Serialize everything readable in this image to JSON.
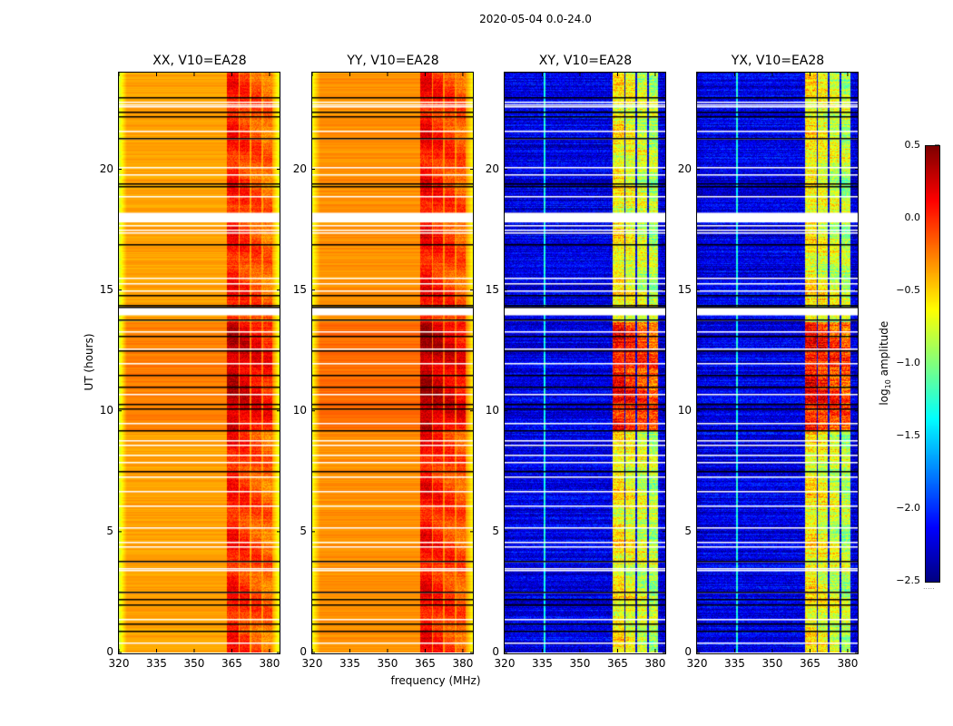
{
  "figure": {
    "suptitle": "2020-05-04 0.0-24.0",
    "xlabel": "frequency (MHz)",
    "ylabel": "UT (hours)",
    "colorbar_label_prefix": "log",
    "colorbar_label_sub": "10",
    "colorbar_label_suffix": " amplitude"
  },
  "chart_data": {
    "type": "heatmap",
    "title": "2020-05-04 0.0-24.0",
    "xlabel": "frequency (MHz)",
    "ylabel": "UT (hours)",
    "xlim": [
      320,
      384
    ],
    "ylim": [
      0,
      24
    ],
    "xticks": [
      320,
      335,
      350,
      365,
      380
    ],
    "yticks": [
      0,
      5,
      10,
      15,
      20
    ],
    "colormap": "jet",
    "colorbar": {
      "label": "log10 amplitude",
      "range": [
        -2.5,
        0.5
      ],
      "ticks": [
        0.5,
        0.0,
        -0.5,
        -1.0,
        -1.5,
        -2.0,
        -2.5
      ],
      "tick_labels": [
        "0.5",
        "0.0",
        "−0.5",
        "−1.0",
        "−1.5",
        "−2.0",
        "−2.5"
      ]
    },
    "panels": [
      {
        "title": "XX, V10=EA28",
        "polarization": "XX",
        "baseline_level": -0.35,
        "band_level": 0.05,
        "day_level": -0.1,
        "edge_level": -0.75
      },
      {
        "title": "YY, V10=EA28",
        "polarization": "YY",
        "baseline_level": -0.3,
        "band_level": 0.1,
        "day_level": -0.05,
        "edge_level": -0.65
      },
      {
        "title": "XY, V10=EA28",
        "polarization": "XY",
        "baseline_level": -2.2,
        "band_level": -0.6,
        "day_level": 0.3,
        "edge_level": -2.3
      },
      {
        "title": "YX, V10=EA28",
        "polarization": "YX",
        "baseline_level": -2.2,
        "band_level": -0.6,
        "day_level": 0.3,
        "edge_level": -2.3
      }
    ],
    "rfi_subbands_MHz": [
      [
        363,
        367.5
      ],
      [
        367.8,
        372
      ],
      [
        372.5,
        376.5
      ],
      [
        377.2,
        381
      ]
    ],
    "high_rfi_period_hours": [
      9.2,
      13.7
    ],
    "flagged_white_rows_hours": [
      0.4,
      1.4,
      2.5,
      3.4,
      3.5,
      3.8,
      4.4,
      4.6,
      5.2,
      6.1,
      6.7,
      7.3,
      7.9,
      8.2,
      8.6,
      8.8,
      9.5,
      10.7,
      12.0,
      12.6,
      13.3,
      13.8,
      14.0,
      14.1,
      14.2,
      15.0,
      15.3,
      15.5,
      17.4,
      17.5,
      17.7,
      17.9,
      18.1,
      18.9,
      19.8,
      20.1,
      21.3,
      21.6,
      22.6,
      22.7,
      22.8
    ],
    "flagged_black_rows_hours": [
      0.9,
      1.2,
      2.0,
      2.2,
      2.5,
      3.8,
      7.5,
      9.2,
      10.1,
      10.3,
      11.0,
      11.5,
      12.5,
      13.1,
      13.8,
      14.3,
      14.4,
      14.8,
      16.9,
      19.3,
      19.4,
      21.3,
      22.2,
      22.4,
      23.0
    ],
    "fully_flagged_hours": [
      [
        14.0,
        14.3
      ],
      [
        17.8,
        18.2
      ]
    ]
  }
}
